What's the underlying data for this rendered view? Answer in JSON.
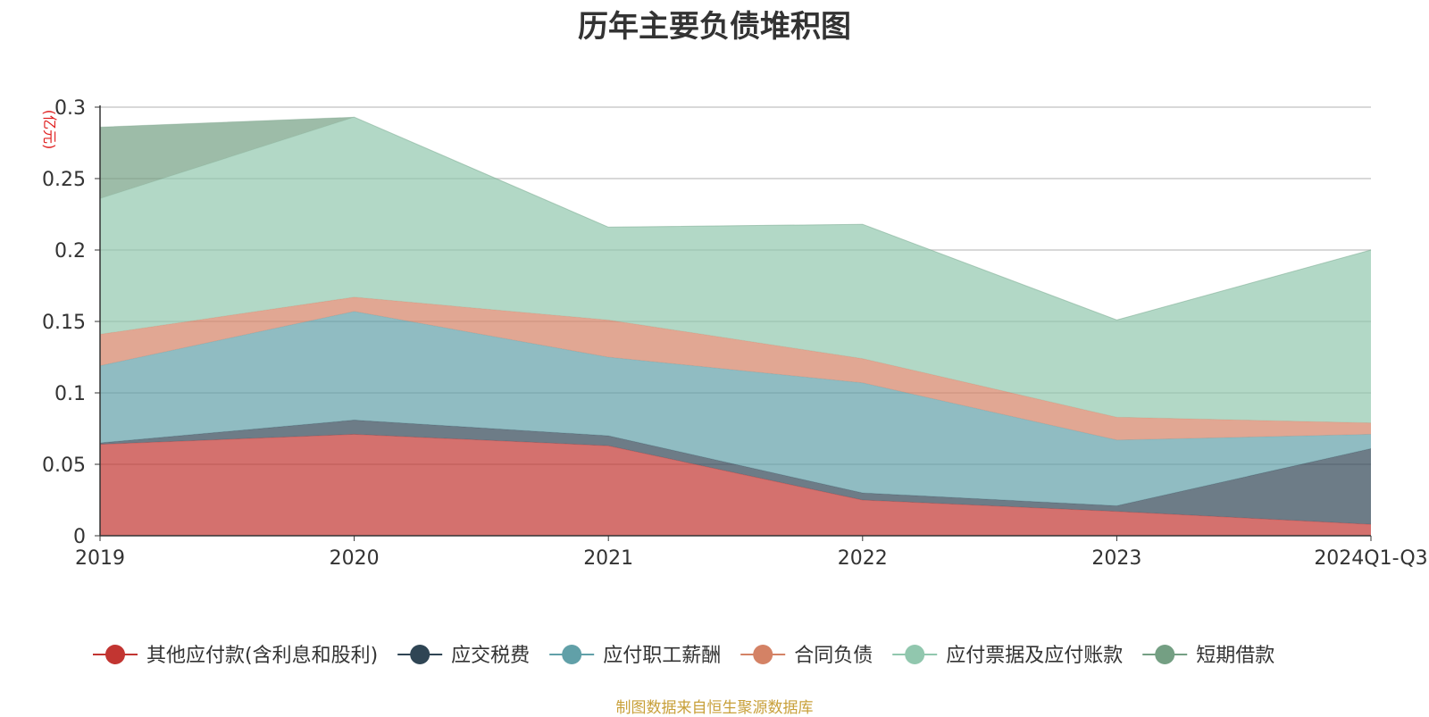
{
  "title": "历年主要负债堆积图",
  "source": "制图数据来自恒生聚源数据库",
  "chart_data": {
    "type": "area",
    "stacked": true,
    "ylabel": "(亿元)",
    "ylim": [
      0,
      0.3
    ],
    "yticks": [
      "0",
      "0.05",
      "0.1",
      "0.15",
      "0.2",
      "0.25",
      "0.3"
    ],
    "categories": [
      "2019",
      "2020",
      "2021",
      "2022",
      "2023",
      "2024Q1-Q3"
    ],
    "grid": true,
    "legend_position": "bottom",
    "series": [
      {
        "name": "其他应付款(含利息和股利)",
        "color": "#c23531",
        "values": [
          0.064,
          0.071,
          0.063,
          0.025,
          0.017,
          0.008
        ]
      },
      {
        "name": "应交税费",
        "color": "#2f4554",
        "values": [
          0.001,
          0.01,
          0.007,
          0.005,
          0.004,
          0.053
        ]
      },
      {
        "name": "应付职工薪酬",
        "color": "#61a0a8",
        "values": [
          0.054,
          0.076,
          0.055,
          0.077,
          0.046,
          0.01
        ]
      },
      {
        "name": "合同负债",
        "color": "#d48265",
        "values": [
          0.022,
          0.01,
          0.026,
          0.017,
          0.016,
          0.008
        ]
      },
      {
        "name": "应付票据及应付账款",
        "color": "#91c7ae",
        "values": [
          0.095,
          0.126,
          0.065,
          0.094,
          0.068,
          0.121
        ]
      },
      {
        "name": "短期借款",
        "color": "#749f83",
        "values": [
          0.05,
          0.0,
          0.0,
          0.0,
          0.0,
          0.0
        ]
      }
    ]
  }
}
